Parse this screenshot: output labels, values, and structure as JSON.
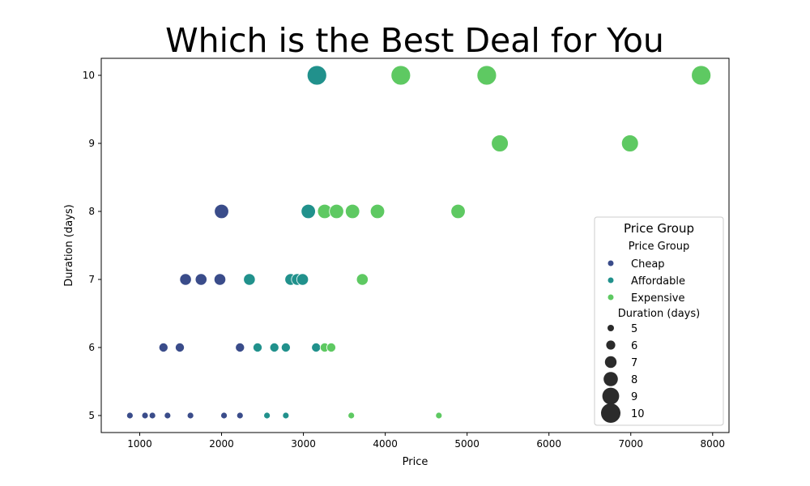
{
  "chart_data": {
    "type": "scatter",
    "title": "Which is the Best Deal for You",
    "xlabel": "Price",
    "ylabel": "Duration (days)",
    "xlim": [
      530,
      8200
    ],
    "ylim": [
      4.75,
      10.25
    ],
    "xticks": [
      1000,
      2000,
      3000,
      4000,
      5000,
      6000,
      7000,
      8000
    ],
    "yticks": [
      5,
      6,
      7,
      8,
      9,
      10
    ],
    "grid": false,
    "legend": {
      "placement": "lower-right",
      "title": "Price Group",
      "hue_header": "Price Group",
      "size_header": "Duration (days)",
      "size_levels": [
        5,
        6,
        7,
        8,
        9,
        10
      ]
    },
    "colors": {
      "Cheap": "#3a4c8a",
      "Affordable": "#21918c",
      "Expensive": "#5ec962"
    },
    "series": [
      {
        "name": "Cheap",
        "points": [
          {
            "x": 880,
            "y": 5
          },
          {
            "x": 1065,
            "y": 5
          },
          {
            "x": 1155,
            "y": 5
          },
          {
            "x": 1340,
            "y": 5
          },
          {
            "x": 1620,
            "y": 5
          },
          {
            "x": 2030,
            "y": 5
          },
          {
            "x": 2225,
            "y": 5
          },
          {
            "x": 1290,
            "y": 6
          },
          {
            "x": 1490,
            "y": 6
          },
          {
            "x": 2225,
            "y": 6
          },
          {
            "x": 1560,
            "y": 7
          },
          {
            "x": 1750,
            "y": 7
          },
          {
            "x": 1980,
            "y": 7
          },
          {
            "x": 2000,
            "y": 8
          }
        ]
      },
      {
        "name": "Affordable",
        "points": [
          {
            "x": 2555,
            "y": 5
          },
          {
            "x": 2785,
            "y": 5
          },
          {
            "x": 2440,
            "y": 6
          },
          {
            "x": 2645,
            "y": 6
          },
          {
            "x": 2785,
            "y": 6
          },
          {
            "x": 3155,
            "y": 6
          },
          {
            "x": 2340,
            "y": 7
          },
          {
            "x": 2845,
            "y": 7
          },
          {
            "x": 2925,
            "y": 7
          },
          {
            "x": 2990,
            "y": 7
          },
          {
            "x": 3060,
            "y": 8
          },
          {
            "x": 3165,
            "y": 10
          }
        ]
      },
      {
        "name": "Expensive",
        "points": [
          {
            "x": 3585,
            "y": 5
          },
          {
            "x": 4655,
            "y": 5
          },
          {
            "x": 3260,
            "y": 6
          },
          {
            "x": 3340,
            "y": 6
          },
          {
            "x": 3720,
            "y": 7
          },
          {
            "x": 3260,
            "y": 8
          },
          {
            "x": 3405,
            "y": 8
          },
          {
            "x": 3600,
            "y": 8
          },
          {
            "x": 3905,
            "y": 8
          },
          {
            "x": 4890,
            "y": 8
          },
          {
            "x": 5400,
            "y": 9
          },
          {
            "x": 6990,
            "y": 9
          },
          {
            "x": 4190,
            "y": 10
          },
          {
            "x": 5240,
            "y": 10
          },
          {
            "x": 7860,
            "y": 10
          }
        ]
      }
    ]
  }
}
